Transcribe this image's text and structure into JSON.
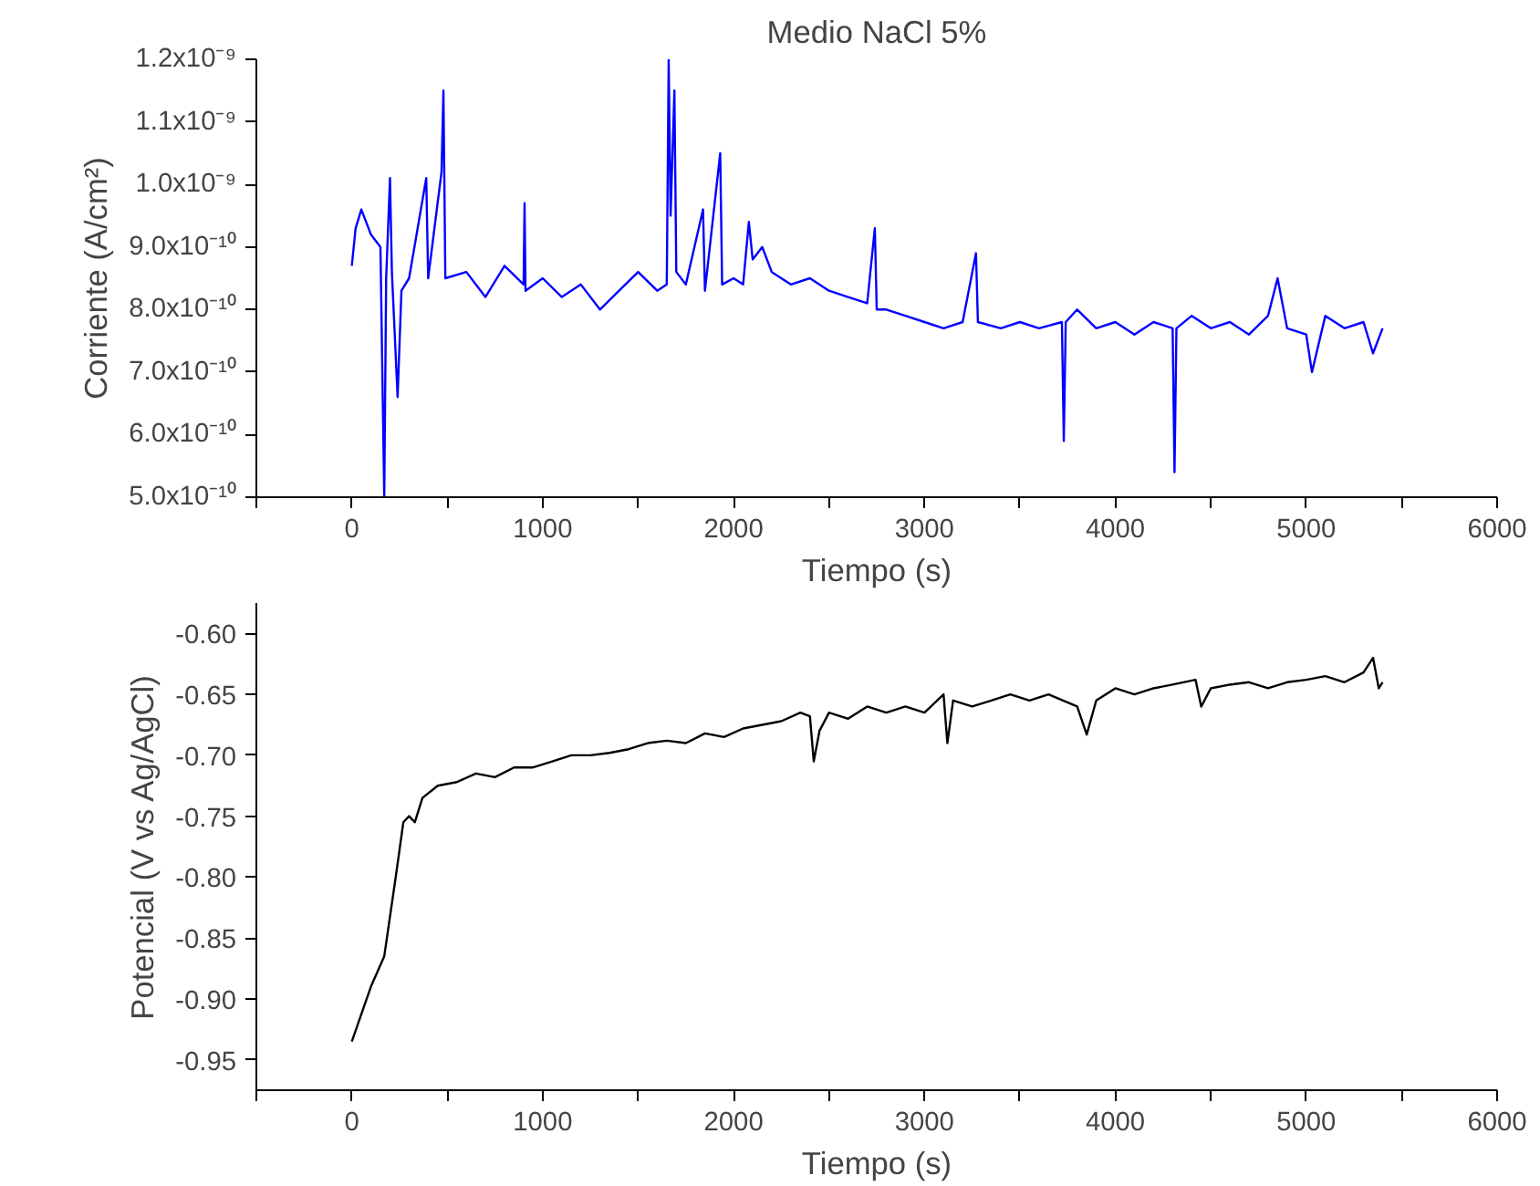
{
  "chart_data": [
    {
      "type": "line",
      "title": "Medio NaCl 5%",
      "xlabel": "Tiempo (s)",
      "ylabel": "Corriente (A/cm²)",
      "grid": false,
      "marker": "none",
      "line_style": "solid",
      "xlim": [
        -500,
        6000
      ],
      "ylim": [
        5e-10,
        1.2e-09
      ],
      "xticks": [
        {
          "value": -500,
          "label": null
        },
        0,
        {
          "value": 500,
          "label": null
        },
        1000,
        {
          "value": 1500,
          "label": null
        },
        2000,
        {
          "value": 2500,
          "label": null
        },
        3000,
        {
          "value": 3500,
          "label": null
        },
        4000,
        {
          "value": 4500,
          "label": null
        },
        5000,
        {
          "value": 5500,
          "label": null
        },
        6000
      ],
      "yticks": [
        {
          "value": 5e-10,
          "label": "5.0x10⁻¹⁰"
        },
        {
          "value": 6e-10,
          "label": "6.0x10⁻¹⁰"
        },
        {
          "value": 7e-10,
          "label": "7.0x10⁻¹⁰"
        },
        {
          "value": 8e-10,
          "label": "8.0x10⁻¹⁰"
        },
        {
          "value": 9e-10,
          "label": "9.0x10⁻¹⁰"
        },
        {
          "value": 1e-09,
          "label": "1.0x10⁻⁹"
        },
        {
          "value": 1.1e-09,
          "label": "1.1x10⁻⁹"
        },
        {
          "value": 1.2e-09,
          "label": "1.2x10⁻⁹"
        }
      ],
      "series": [
        {
          "color": "#0000ff",
          "x": [
            0,
            20,
            50,
            100,
            150,
            170,
            180,
            200,
            210,
            240,
            260,
            300,
            390,
            400,
            470,
            480,
            490,
            600,
            700,
            800,
            900,
            905,
            910,
            1000,
            1100,
            1200,
            1300,
            1400,
            1500,
            1600,
            1650,
            1660,
            1670,
            1690,
            1700,
            1750,
            1840,
            1850,
            1930,
            1940,
            2000,
            2050,
            2080,
            2100,
            2150,
            2200,
            2300,
            2400,
            2500,
            2600,
            2700,
            2740,
            2750,
            2800,
            2900,
            3000,
            3100,
            3200,
            3270,
            3280,
            3400,
            3500,
            3600,
            3720,
            3730,
            3740,
            3800,
            3900,
            4000,
            4100,
            4200,
            4300,
            4310,
            4320,
            4400,
            4500,
            4600,
            4700,
            4800,
            4850,
            4900,
            5000,
            5030,
            5100,
            5200,
            5300,
            5350,
            5400
          ],
          "values": [
            8.7e-10,
            9.3e-10,
            9.6e-10,
            9.2e-10,
            9e-10,
            5e-10,
            8.5e-10,
            1.01e-09,
            8.6e-10,
            6.6e-10,
            8.3e-10,
            8.5e-10,
            1.01e-09,
            8.5e-10,
            1.02e-09,
            1.15e-09,
            8.5e-10,
            8.6e-10,
            8.2e-10,
            8.7e-10,
            8.4e-10,
            9.7e-10,
            8.3e-10,
            8.5e-10,
            8.2e-10,
            8.4e-10,
            8e-10,
            8.3e-10,
            8.6e-10,
            8.3e-10,
            8.4e-10,
            1.2e-09,
            9.5e-10,
            1.15e-09,
            8.6e-10,
            8.4e-10,
            9.6e-10,
            8.3e-10,
            1.05e-09,
            8.4e-10,
            8.5e-10,
            8.4e-10,
            9.4e-10,
            8.8e-10,
            9e-10,
            8.6e-10,
            8.4e-10,
            8.5e-10,
            8.3e-10,
            8.2e-10,
            8.1e-10,
            9.3e-10,
            8e-10,
            8e-10,
            7.9e-10,
            7.8e-10,
            7.7e-10,
            7.8e-10,
            8.9e-10,
            7.8e-10,
            7.7e-10,
            7.8e-10,
            7.7e-10,
            7.8e-10,
            5.9e-10,
            7.8e-10,
            8e-10,
            7.7e-10,
            7.8e-10,
            7.6e-10,
            7.8e-10,
            7.7e-10,
            5.4e-10,
            7.7e-10,
            7.9e-10,
            7.7e-10,
            7.8e-10,
            7.6e-10,
            7.9e-10,
            8.5e-10,
            7.7e-10,
            7.6e-10,
            7e-10,
            7.9e-10,
            7.7e-10,
            7.8e-10,
            7.3e-10,
            7.7e-10
          ]
        }
      ]
    },
    {
      "type": "line",
      "xlabel": "Tiempo (s)",
      "ylabel": "Potencial (V vs Ag/AgCl)",
      "grid": false,
      "marker": "none",
      "line_style": "solid",
      "xlim": [
        -500,
        6000
      ],
      "ylim": [
        -0.975,
        -0.575
      ],
      "xticks": [
        {
          "value": -500,
          "label": null
        },
        0,
        {
          "value": 500,
          "label": null
        },
        1000,
        {
          "value": 1500,
          "label": null
        },
        2000,
        {
          "value": 2500,
          "label": null
        },
        3000,
        {
          "value": 3500,
          "label": null
        },
        4000,
        {
          "value": 4500,
          "label": null
        },
        5000,
        {
          "value": 5500,
          "label": null
        },
        6000
      ],
      "yticks": [
        {
          "value": -0.95,
          "label": "-0.95"
        },
        {
          "value": -0.9,
          "label": "-0.90"
        },
        {
          "value": -0.85,
          "label": "-0.85"
        },
        {
          "value": -0.8,
          "label": "-0.80"
        },
        {
          "value": -0.75,
          "label": "-0.75"
        },
        {
          "value": -0.7,
          "label": "-0.70"
        },
        {
          "value": -0.65,
          "label": "-0.65"
        },
        {
          "value": -0.6,
          "label": "-0.60"
        }
      ],
      "series": [
        {
          "color": "#000000",
          "x": [
            0,
            100,
            170,
            230,
            270,
            300,
            330,
            370,
            450,
            550,
            650,
            750,
            850,
            950,
            1050,
            1150,
            1250,
            1350,
            1450,
            1550,
            1650,
            1750,
            1850,
            1950,
            2050,
            2150,
            2250,
            2350,
            2400,
            2420,
            2450,
            2500,
            2600,
            2700,
            2800,
            2900,
            3000,
            3100,
            3120,
            3150,
            3250,
            3350,
            3450,
            3550,
            3650,
            3800,
            3850,
            3900,
            4000,
            4100,
            4200,
            4300,
            4420,
            4450,
            4500,
            4600,
            4700,
            4800,
            4900,
            5000,
            5100,
            5200,
            5300,
            5350,
            5380,
            5400
          ],
          "values": [
            -0.935,
            -0.89,
            -0.865,
            -0.8,
            -0.755,
            -0.75,
            -0.755,
            -0.735,
            -0.725,
            -0.722,
            -0.715,
            -0.718,
            -0.71,
            -0.71,
            -0.705,
            -0.7,
            -0.7,
            -0.698,
            -0.695,
            -0.69,
            -0.688,
            -0.69,
            -0.682,
            -0.685,
            -0.678,
            -0.675,
            -0.672,
            -0.665,
            -0.668,
            -0.705,
            -0.68,
            -0.665,
            -0.67,
            -0.66,
            -0.665,
            -0.66,
            -0.665,
            -0.65,
            -0.69,
            -0.655,
            -0.66,
            -0.655,
            -0.65,
            -0.655,
            -0.65,
            -0.66,
            -0.683,
            -0.655,
            -0.645,
            -0.65,
            -0.645,
            -0.642,
            -0.638,
            -0.66,
            -0.645,
            -0.642,
            -0.64,
            -0.645,
            -0.64,
            -0.638,
            -0.635,
            -0.64,
            -0.632,
            -0.62,
            -0.645,
            -0.64
          ]
        }
      ]
    }
  ]
}
